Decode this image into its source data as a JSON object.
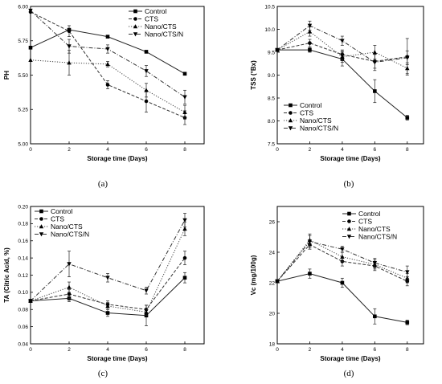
{
  "chart_data": [
    {
      "panel": "(a)",
      "type": "line",
      "xlabel": "Storage time (Days)",
      "ylabel": "PH",
      "xlim": [
        0,
        9
      ],
      "ylim": [
        5.0,
        6.0
      ],
      "xticks": [
        "0",
        "2",
        "4",
        "6",
        "8"
      ],
      "yticks": [
        "5.00",
        "5.25",
        "5.50",
        "5.75",
        "6.00"
      ],
      "legend_position": "top-right",
      "x": [
        0,
        2,
        4,
        6,
        8
      ],
      "series": [
        {
          "name": "Control",
          "values": [
            5.7,
            5.83,
            5.78,
            5.67,
            5.51
          ],
          "errors": [
            0,
            0.01,
            0.01,
            0.01,
            0.01
          ]
        },
        {
          "name": "CTS",
          "values": [
            5.96,
            5.82,
            5.43,
            5.31,
            5.19
          ],
          "errors": [
            0,
            0.04,
            0.03,
            0.08,
            0.05
          ]
        },
        {
          "name": "Nano/CTS",
          "values": [
            5.61,
            5.59,
            5.58,
            5.39,
            5.23
          ],
          "errors": [
            0,
            0.09,
            0.02,
            0.05,
            0.05
          ]
        },
        {
          "name": "Nano/CTS/N",
          "values": [
            5.97,
            5.71,
            5.69,
            5.53,
            5.34
          ],
          "errors": [
            0,
            0.05,
            0.03,
            0.04,
            0.05
          ]
        }
      ]
    },
    {
      "panel": "(b)",
      "type": "line",
      "xlabel": "Storage time (Days)",
      "ylabel": "TSS (°Bx)",
      "xlim": [
        0,
        9
      ],
      "ylim": [
        7.5,
        10.5
      ],
      "xticks": [
        "0",
        "2",
        "4",
        "6",
        "8"
      ],
      "yticks": [
        "7.5",
        "8.0",
        "8.5",
        "9.0",
        "9.5",
        "10.0",
        "10.5"
      ],
      "legend_position": "bottom-left",
      "x": [
        0,
        2,
        4,
        6,
        8
      ],
      "series": [
        {
          "name": "Control",
          "values": [
            9.55,
            9.55,
            9.35,
            8.65,
            8.07
          ],
          "errors": [
            0,
            0.05,
            0.15,
            0.25,
            0.05
          ]
        },
        {
          "name": "CTS",
          "values": [
            9.55,
            9.7,
            9.45,
            9.3,
            9.4
          ],
          "errors": [
            0,
            0.08,
            0.1,
            0.15,
            0.4
          ]
        },
        {
          "name": "Nano/CTS",
          "values": [
            9.55,
            9.95,
            9.4,
            9.5,
            9.15
          ],
          "errors": [
            0,
            0.1,
            0.12,
            0.15,
            0.12
          ]
        },
        {
          "name": "Nano/CTS/N",
          "values": [
            9.55,
            10.08,
            9.75,
            9.28,
            9.38
          ],
          "errors": [
            0,
            0.1,
            0.1,
            0.18,
            0.15
          ]
        }
      ]
    },
    {
      "panel": "(c)",
      "type": "line",
      "xlabel": "Storage time (Days)",
      "ylabel": "TA (Citric Acid, %)",
      "xlim": [
        0,
        9
      ],
      "ylim": [
        0.04,
        0.2
      ],
      "xticks": [
        "0",
        "2",
        "4",
        "6",
        "8"
      ],
      "yticks": [
        "0.04",
        "0.06",
        "0.08",
        "0.10",
        "0.12",
        "0.14",
        "0.16",
        "0.18",
        "0.20"
      ],
      "legend_position": "top-left",
      "x": [
        0,
        2,
        4,
        6,
        8
      ],
      "series": [
        {
          "name": "Control",
          "values": [
            0.09,
            0.093,
            0.076,
            0.073,
            0.117
          ],
          "errors": [
            0,
            0.004,
            0.004,
            0.012,
            0.006
          ]
        },
        {
          "name": "CTS",
          "values": [
            0.09,
            0.098,
            0.086,
            0.08,
            0.14
          ],
          "errors": [
            0,
            0.005,
            0.004,
            0.005,
            0.008
          ]
        },
        {
          "name": "Nano/CTS",
          "values": [
            0.09,
            0.106,
            0.084,
            0.077,
            0.174
          ],
          "errors": [
            0,
            0.006,
            0.004,
            0.004,
            0.008
          ]
        },
        {
          "name": "Nano/CTS/N",
          "values": [
            0.09,
            0.133,
            0.117,
            0.102,
            0.184
          ],
          "errors": [
            0,
            0.015,
            0.005,
            0.004,
            0.008
          ]
        }
      ]
    },
    {
      "panel": "(d)",
      "type": "line",
      "xlabel": "Storage time (Days)",
      "ylabel": "Vc (mg/100g)",
      "xlim": [
        0,
        9
      ],
      "ylim": [
        18,
        27
      ],
      "xticks": [
        "0",
        "2",
        "4",
        "6",
        "8"
      ],
      "yticks": [
        "18",
        "20",
        "22",
        "24",
        "26"
      ],
      "legend_position": "top-right",
      "x": [
        0,
        2,
        4,
        6,
        8
      ],
      "series": [
        {
          "name": "Control",
          "values": [
            22.1,
            22.6,
            22.0,
            19.8,
            19.4
          ],
          "errors": [
            0,
            0.3,
            0.3,
            0.5,
            0.15
          ]
        },
        {
          "name": "CTS",
          "values": [
            22.1,
            24.5,
            23.4,
            23.1,
            22.1
          ],
          "errors": [
            0,
            0.3,
            0.3,
            0.3,
            0.3
          ]
        },
        {
          "name": "Nano/CTS",
          "values": [
            22.1,
            24.8,
            23.7,
            23.2,
            22.3
          ],
          "errors": [
            0,
            0.4,
            0.3,
            0.3,
            0.3
          ]
        },
        {
          "name": "Nano/CTS/N",
          "values": [
            22.1,
            24.7,
            24.2,
            23.3,
            22.7
          ],
          "errors": [
            0,
            0.4,
            0.2,
            0.3,
            0.4
          ]
        }
      ]
    }
  ],
  "colors": {
    "axis": "#000000",
    "series": [
      "#222222",
      "#333333",
      "#444444",
      "#333333"
    ]
  }
}
